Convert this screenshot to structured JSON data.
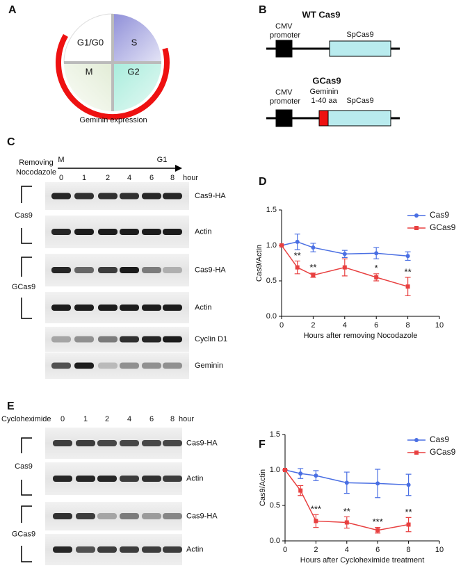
{
  "panel_labels": [
    "A",
    "B",
    "C",
    "D",
    "E",
    "F"
  ],
  "panel_a": {
    "phases": [
      "G1/G0",
      "S",
      "M",
      "G2"
    ],
    "caption": "Geminin expression"
  },
  "panel_b": {
    "constructs": [
      {
        "title": "WT Cas9",
        "promoter": [
          "CMV",
          "promoter"
        ],
        "gene": "SpCas9"
      },
      {
        "title": "GCas9",
        "promoter": [
          "CMV",
          "promoter"
        ],
        "tag": [
          "Geminin",
          "1-40 aa"
        ],
        "gene": "SpCas9"
      }
    ]
  },
  "panel_c": {
    "treatment": [
      "Removing",
      "Nocodazole"
    ],
    "phase_start": "M",
    "phase_end": "G1",
    "timepoints": [
      "0",
      "1",
      "2",
      "4",
      "6",
      "8"
    ],
    "time_unit": "hour",
    "groups": [
      "Cas9",
      "GCas9"
    ],
    "rows": [
      "Cas9-HA",
      "Actin",
      "Cas9-HA",
      "Actin",
      "Cyclin D1",
      "Geminin"
    ]
  },
  "panel_e": {
    "treatment": [
      "Cycloheximide"
    ],
    "timepoints": [
      "0",
      "1",
      "2",
      "4",
      "6",
      "8"
    ],
    "time_unit": "hour",
    "groups": [
      "Cas9",
      "GCas9"
    ],
    "rows": [
      "Cas9-HA",
      "Actin",
      "Cas9-HA",
      "Actin"
    ]
  },
  "chart_data": [
    {
      "type": "line",
      "xlabel": "Hours after removing Nocodazole",
      "ylabel": "Cas9/Actin",
      "xlim": [
        0,
        10
      ],
      "ylim": [
        0,
        1.5
      ],
      "xticks": [
        0,
        2,
        4,
        6,
        8,
        10
      ],
      "yticks": [
        {
          "value": 0,
          "label": "0.0"
        },
        {
          "value": 0.5,
          "label": "0.5"
        },
        {
          "value": 1,
          "label": "1.0"
        },
        {
          "value": 1.5,
          "label": "1.5"
        }
      ],
      "legend": "upper right",
      "x": [
        0,
        1,
        2,
        4,
        6,
        8
      ],
      "series": [
        {
          "name": "Cas9",
          "color": "#4a6fe3",
          "marker": "circle",
          "values": [
            1.0,
            1.05,
            0.97,
            0.88,
            0.89,
            0.85
          ],
          "errors": [
            0,
            0.11,
            0.06,
            0.05,
            0.08,
            0.06
          ]
        },
        {
          "name": "GCas9",
          "color": "#e84040",
          "marker": "square",
          "values": [
            1.0,
            0.69,
            0.58,
            0.69,
            0.55,
            0.42
          ],
          "errors": [
            0,
            0.09,
            0.03,
            0.12,
            0.05,
            0.13
          ]
        }
      ],
      "annotations": [
        {
          "x": 1,
          "label": "**"
        },
        {
          "x": 2,
          "label": "**"
        },
        {
          "x": 6,
          "label": "*"
        },
        {
          "x": 8,
          "label": "**"
        }
      ]
    },
    {
      "type": "line",
      "xlabel": "Hours after Cycloheximide treatment",
      "ylabel": "Cas9/Actin",
      "xlim": [
        0,
        10
      ],
      "ylim": [
        0,
        1.5
      ],
      "xticks": [
        0,
        2,
        4,
        6,
        8,
        10
      ],
      "yticks": [
        {
          "value": 0,
          "label": "0.0"
        },
        {
          "value": 0.5,
          "label": "0.5"
        },
        {
          "value": 1,
          "label": "1.0"
        },
        {
          "value": 1.5,
          "label": "1.5"
        }
      ],
      "legend": "upper right",
      "x": [
        0,
        1,
        2,
        4,
        6,
        8
      ],
      "series": [
        {
          "name": "Cas9",
          "color": "#4a6fe3",
          "marker": "circle",
          "values": [
            1.0,
            0.95,
            0.92,
            0.82,
            0.81,
            0.79
          ],
          "errors": [
            0,
            0.07,
            0.07,
            0.15,
            0.2,
            0.15
          ]
        },
        {
          "name": "GCas9",
          "color": "#e84040",
          "marker": "square",
          "values": [
            1.0,
            0.71,
            0.28,
            0.26,
            0.15,
            0.23
          ],
          "errors": [
            0,
            0.07,
            0.09,
            0.08,
            0.04,
            0.1
          ]
        }
      ],
      "annotations": [
        {
          "x": 2,
          "label": "***"
        },
        {
          "x": 4,
          "label": "**"
        },
        {
          "x": 6,
          "label": "***"
        },
        {
          "x": 8,
          "label": "**"
        }
      ]
    }
  ]
}
